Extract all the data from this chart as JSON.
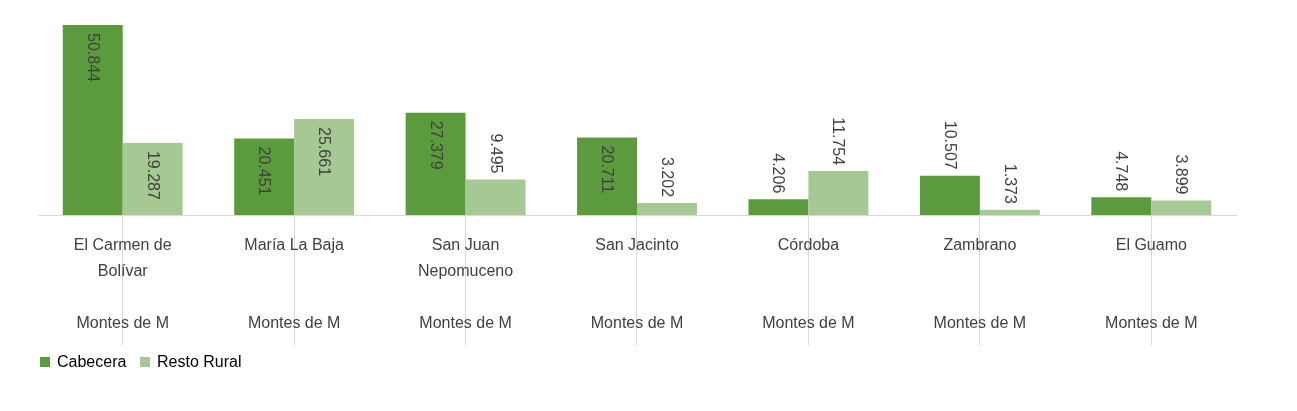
{
  "chart_data": {
    "type": "bar",
    "categories": [
      "El Carmen de Bolívar",
      "María La Baja",
      "San Juan Nepomuceno",
      "San Jacinto",
      "Córdoba",
      "Zambrano",
      "El Guamo"
    ],
    "series": [
      {
        "name": "Cabecera",
        "color": "#5b9b3d",
        "values": [
          50.844,
          20.451,
          27.379,
          20.711,
          4.206,
          10.507,
          4.748
        ]
      },
      {
        "name": "Resto Rural",
        "color": "#a6c993",
        "values": [
          19.287,
          25.661,
          9.495,
          3.202,
          11.754,
          1.373,
          3.899
        ]
      }
    ],
    "annotations": [
      "Montes de M",
      "Montes de M",
      "Montes de M",
      "Montes de M",
      "Montes de M",
      "Montes de M",
      "Montes de M"
    ],
    "data_labels": true,
    "legend": "bottom",
    "grid": false
  }
}
